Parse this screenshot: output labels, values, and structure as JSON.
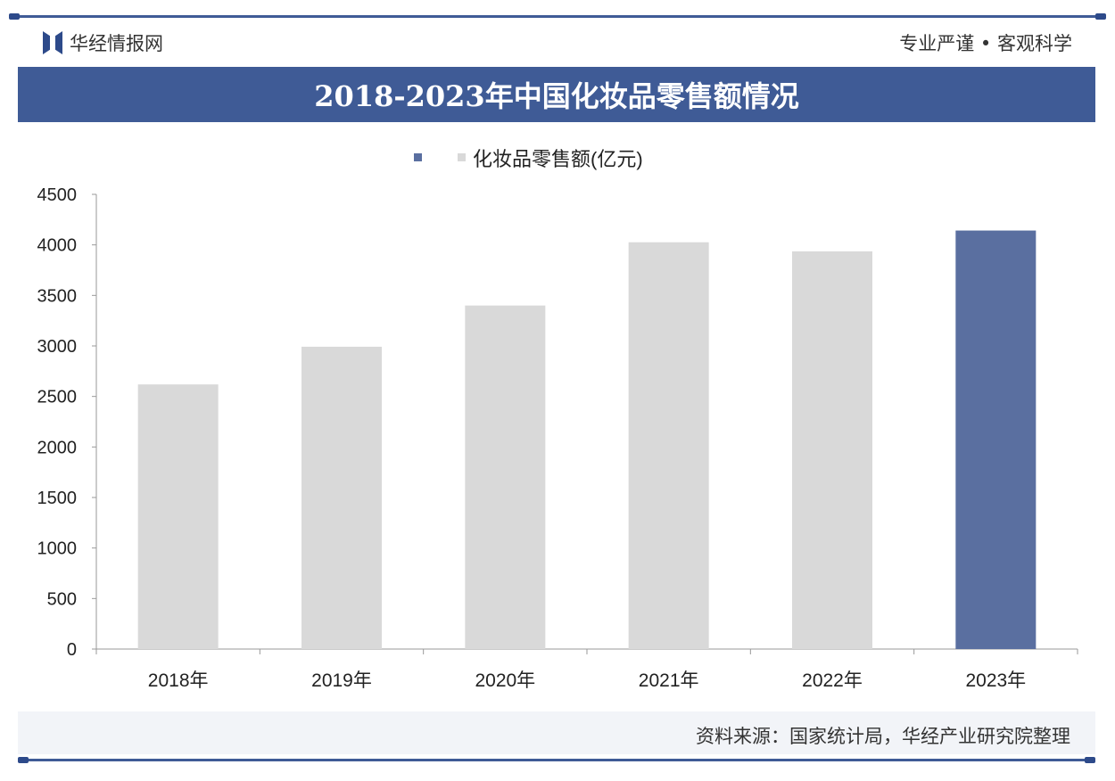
{
  "header": {
    "brand": "华经情报网",
    "slogan": "专业严谨 • 客观科学"
  },
  "footer": {
    "source": "资料来源：国家统计局，华经产业研究院整理"
  },
  "colors": {
    "primary": "#3f5b96",
    "bar_default": "#d9d9d9",
    "bar_highlight": "#5a6fa0"
  },
  "chart_data": {
    "type": "bar",
    "title": "2018-2023年中国化妆品零售额情况",
    "categories": [
      "2018年",
      "2019年",
      "2020年",
      "2021年",
      "2022年",
      "2023年"
    ],
    "series": [
      {
        "name": "化妆品零售额(亿元)",
        "values": [
          2619,
          2992,
          3400,
          4026,
          3936,
          4142
        ]
      }
    ],
    "highlight_index": 5,
    "ylim": [
      0,
      4500
    ],
    "yticks": [
      0,
      500,
      1000,
      1500,
      2000,
      2500,
      3000,
      3500,
      4000,
      4500
    ],
    "grid": false,
    "legend": "top-center",
    "xlabel": "",
    "ylabel": ""
  }
}
